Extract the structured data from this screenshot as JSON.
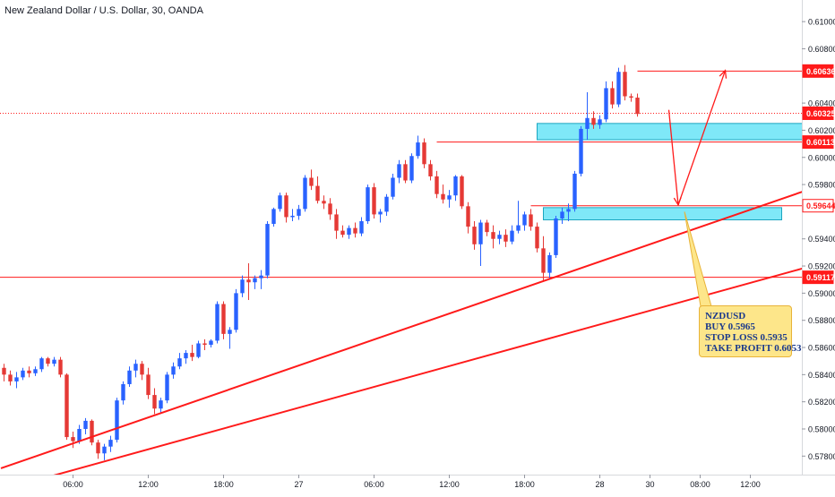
{
  "chart_data": {
    "type": "candlestick",
    "title": "New Zealand Dollar / U.S. Dollar, 30, OANDA",
    "ylim": [
      0.5769,
      0.6108
    ],
    "y_ticks": [
      "0.61000",
      "0.60800",
      "0.60400",
      "0.60200",
      "0.60000",
      "0.59800",
      "0.59400",
      "0.59200",
      "0.59000",
      "0.58800",
      "0.58600",
      "0.58400",
      "0.58200",
      "0.58000",
      "0.57800"
    ],
    "y_tick_values": [
      0.61,
      0.608,
      0.604,
      0.602,
      0.6,
      0.598,
      0.594,
      0.592,
      0.59,
      0.588,
      0.586,
      0.584,
      0.582,
      0.58,
      0.578
    ],
    "x_ticks": [
      "06:00",
      "12:00",
      "18:00",
      "27",
      "06:00",
      "12:00",
      "18:00",
      "28",
      "30",
      "08:00",
      "12:00"
    ],
    "x_tick_bars": [
      11,
      23,
      35,
      47,
      59,
      71,
      83,
      95,
      103,
      111,
      119
    ],
    "price_markers": [
      {
        "label": "0.60636",
        "value": 0.60636,
        "style": "filled"
      },
      {
        "label": "0.60325",
        "value": 0.60325,
        "style": "filled"
      },
      {
        "label": "0.60113",
        "value": 0.60113,
        "style": "filled"
      },
      {
        "label": "0.59644",
        "value": 0.59644,
        "style": "outline"
      },
      {
        "label": "0.59117",
        "value": 0.59117,
        "style": "filled"
      }
    ],
    "candles": [
      {
        "o": 0.5845,
        "h": 0.5848,
        "l": 0.5835,
        "c": 0.584
      },
      {
        "o": 0.584,
        "h": 0.5843,
        "l": 0.5832,
        "c": 0.5835
      },
      {
        "o": 0.5835,
        "h": 0.5842,
        "l": 0.583,
        "c": 0.5838
      },
      {
        "o": 0.5838,
        "h": 0.5845,
        "l": 0.5836,
        "c": 0.5843
      },
      {
        "o": 0.5843,
        "h": 0.5846,
        "l": 0.5838,
        "c": 0.5841
      },
      {
        "o": 0.5841,
        "h": 0.5846,
        "l": 0.5839,
        "c": 0.5844
      },
      {
        "o": 0.5844,
        "h": 0.5853,
        "l": 0.5842,
        "c": 0.5852
      },
      {
        "o": 0.5852,
        "h": 0.5853,
        "l": 0.5846,
        "c": 0.5848
      },
      {
        "o": 0.5848,
        "h": 0.5853,
        "l": 0.5846,
        "c": 0.5851
      },
      {
        "o": 0.5851,
        "h": 0.5853,
        "l": 0.5838,
        "c": 0.584
      },
      {
        "o": 0.584,
        "h": 0.5841,
        "l": 0.5792,
        "c": 0.5794
      },
      {
        "o": 0.5794,
        "h": 0.5798,
        "l": 0.5786,
        "c": 0.5791
      },
      {
        "o": 0.5791,
        "h": 0.5803,
        "l": 0.5789,
        "c": 0.58
      },
      {
        "o": 0.58,
        "h": 0.5808,
        "l": 0.5796,
        "c": 0.5806
      },
      {
        "o": 0.5806,
        "h": 0.5807,
        "l": 0.5788,
        "c": 0.579
      },
      {
        "o": 0.579,
        "h": 0.5792,
        "l": 0.5778,
        "c": 0.5782
      },
      {
        "o": 0.5782,
        "h": 0.5789,
        "l": 0.5777,
        "c": 0.5787
      },
      {
        "o": 0.5787,
        "h": 0.5795,
        "l": 0.5783,
        "c": 0.5792
      },
      {
        "o": 0.5792,
        "h": 0.5823,
        "l": 0.579,
        "c": 0.5821
      },
      {
        "o": 0.5821,
        "h": 0.5835,
        "l": 0.5818,
        "c": 0.5833
      },
      {
        "o": 0.5833,
        "h": 0.5846,
        "l": 0.5831,
        "c": 0.5843
      },
      {
        "o": 0.5843,
        "h": 0.5851,
        "l": 0.5838,
        "c": 0.5848
      },
      {
        "o": 0.5848,
        "h": 0.585,
        "l": 0.5836,
        "c": 0.584
      },
      {
        "o": 0.584,
        "h": 0.5845,
        "l": 0.5822,
        "c": 0.5825
      },
      {
        "o": 0.5825,
        "h": 0.583,
        "l": 0.5811,
        "c": 0.5815
      },
      {
        "o": 0.5815,
        "h": 0.5823,
        "l": 0.5812,
        "c": 0.5821
      },
      {
        "o": 0.5821,
        "h": 0.5842,
        "l": 0.5819,
        "c": 0.584
      },
      {
        "o": 0.584,
        "h": 0.5849,
        "l": 0.5837,
        "c": 0.5846
      },
      {
        "o": 0.5846,
        "h": 0.5856,
        "l": 0.5844,
        "c": 0.5852
      },
      {
        "o": 0.5852,
        "h": 0.5858,
        "l": 0.5848,
        "c": 0.5856
      },
      {
        "o": 0.5856,
        "h": 0.5862,
        "l": 0.585,
        "c": 0.5853
      },
      {
        "o": 0.5853,
        "h": 0.5865,
        "l": 0.5852,
        "c": 0.5863
      },
      {
        "o": 0.5863,
        "h": 0.5866,
        "l": 0.5858,
        "c": 0.5862
      },
      {
        "o": 0.5862,
        "h": 0.5866,
        "l": 0.586,
        "c": 0.5865
      },
      {
        "o": 0.5865,
        "h": 0.5894,
        "l": 0.5863,
        "c": 0.5892
      },
      {
        "o": 0.5892,
        "h": 0.5894,
        "l": 0.5866,
        "c": 0.587
      },
      {
        "o": 0.587,
        "h": 0.5875,
        "l": 0.5859,
        "c": 0.5873
      },
      {
        "o": 0.5873,
        "h": 0.5903,
        "l": 0.5871,
        "c": 0.59
      },
      {
        "o": 0.59,
        "h": 0.5913,
        "l": 0.5897,
        "c": 0.591
      },
      {
        "o": 0.591,
        "h": 0.5922,
        "l": 0.5895,
        "c": 0.5908
      },
      {
        "o": 0.5908,
        "h": 0.5913,
        "l": 0.5903,
        "c": 0.5911
      },
      {
        "o": 0.5911,
        "h": 0.5917,
        "l": 0.5903,
        "c": 0.5913
      },
      {
        "o": 0.5913,
        "h": 0.5953,
        "l": 0.5911,
        "c": 0.5951
      },
      {
        "o": 0.5951,
        "h": 0.5963,
        "l": 0.5949,
        "c": 0.5962
      },
      {
        "o": 0.5962,
        "h": 0.5974,
        "l": 0.596,
        "c": 0.5972
      },
      {
        "o": 0.5972,
        "h": 0.5974,
        "l": 0.5952,
        "c": 0.5956
      },
      {
        "o": 0.5956,
        "h": 0.5962,
        "l": 0.5953,
        "c": 0.5957
      },
      {
        "o": 0.5957,
        "h": 0.5965,
        "l": 0.5954,
        "c": 0.5962
      },
      {
        "o": 0.5962,
        "h": 0.5987,
        "l": 0.596,
        "c": 0.5985
      },
      {
        "o": 0.5985,
        "h": 0.5991,
        "l": 0.5976,
        "c": 0.5979
      },
      {
        "o": 0.5979,
        "h": 0.5986,
        "l": 0.5966,
        "c": 0.5968
      },
      {
        "o": 0.5968,
        "h": 0.5972,
        "l": 0.5962,
        "c": 0.5966
      },
      {
        "o": 0.5966,
        "h": 0.597,
        "l": 0.5954,
        "c": 0.5958
      },
      {
        "o": 0.5958,
        "h": 0.5962,
        "l": 0.594,
        "c": 0.5946
      },
      {
        "o": 0.5946,
        "h": 0.595,
        "l": 0.5941,
        "c": 0.5943
      },
      {
        "o": 0.5943,
        "h": 0.595,
        "l": 0.594,
        "c": 0.5948
      },
      {
        "o": 0.5948,
        "h": 0.5952,
        "l": 0.5941,
        "c": 0.5944
      },
      {
        "o": 0.5944,
        "h": 0.5956,
        "l": 0.5942,
        "c": 0.5953
      },
      {
        "o": 0.5953,
        "h": 0.598,
        "l": 0.5951,
        "c": 0.5978
      },
      {
        "o": 0.5978,
        "h": 0.5981,
        "l": 0.5955,
        "c": 0.5958
      },
      {
        "o": 0.5958,
        "h": 0.5962,
        "l": 0.5952,
        "c": 0.596
      },
      {
        "o": 0.596,
        "h": 0.5973,
        "l": 0.5957,
        "c": 0.5971
      },
      {
        "o": 0.5971,
        "h": 0.5988,
        "l": 0.5969,
        "c": 0.5985
      },
      {
        "o": 0.5985,
        "h": 0.5998,
        "l": 0.5981,
        "c": 0.5995
      },
      {
        "o": 0.5995,
        "h": 0.5998,
        "l": 0.5981,
        "c": 0.5983
      },
      {
        "o": 0.5983,
        "h": 0.6003,
        "l": 0.5981,
        "c": 0.6001
      },
      {
        "o": 0.6001,
        "h": 0.6016,
        "l": 0.5999,
        "c": 0.6011
      },
      {
        "o": 0.6011,
        "h": 0.6014,
        "l": 0.5992,
        "c": 0.5995
      },
      {
        "o": 0.5995,
        "h": 0.5998,
        "l": 0.5983,
        "c": 0.5986
      },
      {
        "o": 0.5986,
        "h": 0.599,
        "l": 0.597,
        "c": 0.5973
      },
      {
        "o": 0.5973,
        "h": 0.598,
        "l": 0.5966,
        "c": 0.5969
      },
      {
        "o": 0.5969,
        "h": 0.5976,
        "l": 0.5963,
        "c": 0.5972
      },
      {
        "o": 0.5972,
        "h": 0.5987,
        "l": 0.5968,
        "c": 0.5986
      },
      {
        "o": 0.5986,
        "h": 0.5987,
        "l": 0.5962,
        "c": 0.5964
      },
      {
        "o": 0.5964,
        "h": 0.5967,
        "l": 0.5944,
        "c": 0.5949
      },
      {
        "o": 0.5949,
        "h": 0.5953,
        "l": 0.5932,
        "c": 0.5936
      },
      {
        "o": 0.5936,
        "h": 0.5954,
        "l": 0.592,
        "c": 0.5952
      },
      {
        "o": 0.5952,
        "h": 0.5954,
        "l": 0.5942,
        "c": 0.5945
      },
      {
        "o": 0.5945,
        "h": 0.595,
        "l": 0.5933,
        "c": 0.594
      },
      {
        "o": 0.594,
        "h": 0.5946,
        "l": 0.5936,
        "c": 0.5943
      },
      {
        "o": 0.5943,
        "h": 0.5947,
        "l": 0.5934,
        "c": 0.5938
      },
      {
        "o": 0.5938,
        "h": 0.595,
        "l": 0.5936,
        "c": 0.5946
      },
      {
        "o": 0.5946,
        "h": 0.5968,
        "l": 0.5944,
        "c": 0.595
      },
      {
        "o": 0.595,
        "h": 0.596,
        "l": 0.5946,
        "c": 0.5958
      },
      {
        "o": 0.5958,
        "h": 0.5962,
        "l": 0.5946,
        "c": 0.5949
      },
      {
        "o": 0.5949,
        "h": 0.5952,
        "l": 0.593,
        "c": 0.5933
      },
      {
        "o": 0.5933,
        "h": 0.5942,
        "l": 0.5909,
        "c": 0.5915
      },
      {
        "o": 0.5915,
        "h": 0.593,
        "l": 0.5911,
        "c": 0.5928
      },
      {
        "o": 0.5928,
        "h": 0.5957,
        "l": 0.5926,
        "c": 0.5955
      },
      {
        "o": 0.5955,
        "h": 0.5963,
        "l": 0.5951,
        "c": 0.596
      },
      {
        "o": 0.596,
        "h": 0.5966,
        "l": 0.5953,
        "c": 0.5962
      },
      {
        "o": 0.5962,
        "h": 0.599,
        "l": 0.596,
        "c": 0.5988
      },
      {
        "o": 0.5988,
        "h": 0.6023,
        "l": 0.5986,
        "c": 0.6021
      },
      {
        "o": 0.6021,
        "h": 0.6048,
        "l": 0.6013,
        "c": 0.6029
      },
      {
        "o": 0.6029,
        "h": 0.6034,
        "l": 0.6021,
        "c": 0.6024
      },
      {
        "o": 0.6024,
        "h": 0.6031,
        "l": 0.6021,
        "c": 0.6028
      },
      {
        "o": 0.6028,
        "h": 0.6056,
        "l": 0.6026,
        "c": 0.6051
      },
      {
        "o": 0.6051,
        "h": 0.6056,
        "l": 0.6036,
        "c": 0.6039
      },
      {
        "o": 0.6039,
        "h": 0.6066,
        "l": 0.6037,
        "c": 0.6063
      },
      {
        "o": 0.6063,
        "h": 0.6068,
        "l": 0.6042,
        "c": 0.6045
      },
      {
        "o": 0.6045,
        "h": 0.6047,
        "l": 0.6041,
        "c": 0.6044
      },
      {
        "o": 0.6044,
        "h": 0.6047,
        "l": 0.603,
        "c": 0.6032
      }
    ],
    "zones": [
      {
        "from_bar": 85,
        "to_bar": 133,
        "y_top": 0.6025,
        "y_bottom": 0.6013,
        "color": "#7fe8f8"
      },
      {
        "from_bar": 86,
        "to_bar": 124,
        "y_top": 0.5963,
        "y_bottom": 0.5954,
        "color": "#7fe8f8"
      }
    ],
    "trendlines": [
      {
        "from_bar": -0.5,
        "from_y": 0.5771,
        "to_bar": 135,
        "to_y": 0.5987
      },
      {
        "from_bar": -0.5,
        "from_y": 0.5755,
        "to_bar": 135,
        "to_y": 0.5928
      }
    ],
    "hlines": [
      {
        "value": 0.60325,
        "style": "dotted"
      },
      {
        "value": 0.59117,
        "style": "solid"
      }
    ],
    "short_lines": [
      {
        "from_bar": 69,
        "to_bar": 135,
        "value": 0.60113
      },
      {
        "from_bar": 84,
        "to_bar": 135,
        "value": 0.59644
      },
      {
        "from_bar": 101,
        "to_bar": 135,
        "value": 0.60636
      }
    ],
    "arrows": [
      {
        "from_bar": 106,
        "from_y": 0.6035,
        "to_bar": 107.5,
        "to_y": 0.5965
      },
      {
        "from_bar": 107.5,
        "from_y": 0.5965,
        "to_bar": 115,
        "to_y": 0.6064
      }
    ],
    "callout": {
      "lines": [
        "NZDUSD",
        "BUY 0.5965",
        "STOP LOSS 0.5935",
        "TAKE PROFIT 0.6053"
      ],
      "pointer_bar": 108.5,
      "pointer_y": 0.596
    },
    "colors": {
      "up": "#2962ff",
      "down": "#e53935",
      "line": "#ff1a1a",
      "zone": "#7fe8f8",
      "zone_border": "#1ca6c0",
      "callout_bg": "#fde68a",
      "callout_border": "#e8b339",
      "callout_text": "#1b3a8c"
    }
  }
}
